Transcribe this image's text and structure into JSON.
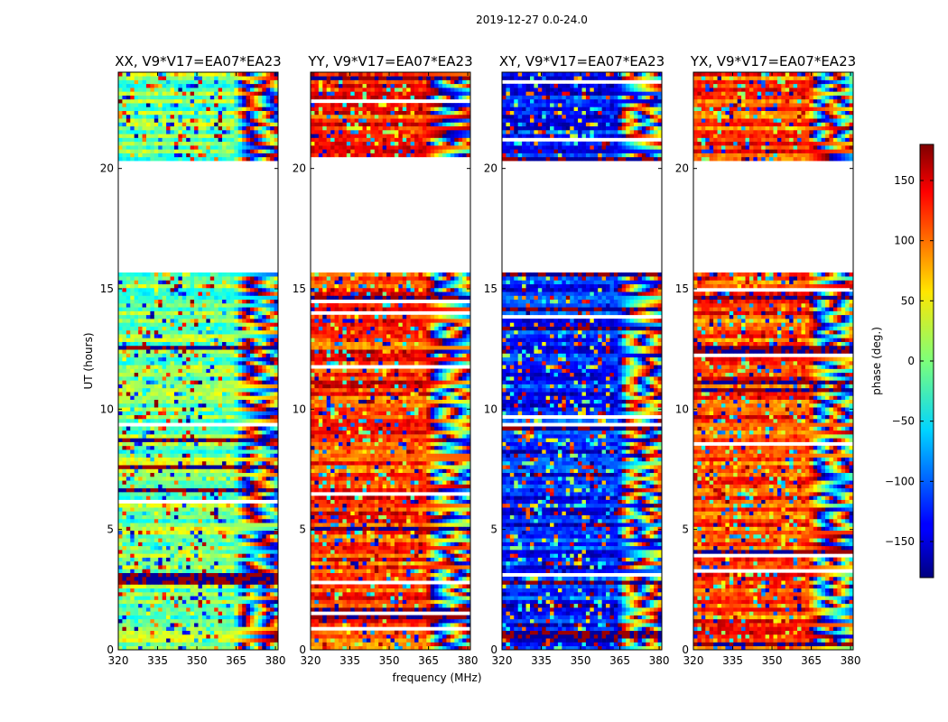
{
  "figure": {
    "suptitle": "2019-12-27 0.0-24.0",
    "xlabel": "frequency (MHz)",
    "ylabel": "UT (hours)"
  },
  "chart_data": {
    "type": "heatmap",
    "title": "2019-12-27 0.0-24.0",
    "xlabel": "frequency (MHz)",
    "ylabel": "UT (hours)",
    "xlim": [
      320,
      381
    ],
    "ylim": [
      0,
      24
    ],
    "xticks": [
      320,
      335,
      350,
      365,
      380
    ],
    "yticks": [
      0,
      5,
      10,
      15,
      20
    ],
    "data_gaps_hours": [
      [
        20.4,
        15.6
      ]
    ],
    "panels": [
      {
        "name": "xx",
        "title": "XX, V9*V17=EA07*EA23",
        "dominant_phase_deg": 0,
        "show_ylabel": true
      },
      {
        "name": "yy",
        "title": "YY, V9*V17=EA07*EA23",
        "dominant_phase_deg": 120,
        "show_ylabel": false
      },
      {
        "name": "xy",
        "title": "XY, V9*V17=EA07*EA23",
        "dominant_phase_deg": -130,
        "show_ylabel": false
      },
      {
        "name": "yx",
        "title": "YX, V9*V17=EA07*EA23",
        "dominant_phase_deg": 110,
        "show_ylabel": false
      }
    ],
    "colorbar": {
      "label": "phase (deg.)",
      "range": [
        -180,
        180
      ],
      "ticks": [
        150,
        100,
        50,
        0,
        -50,
        -100,
        -150
      ],
      "tick_labels": [
        "150",
        "100",
        "50",
        "0",
        "−50",
        "−100",
        "−150"
      ],
      "colormap": "jet"
    }
  }
}
